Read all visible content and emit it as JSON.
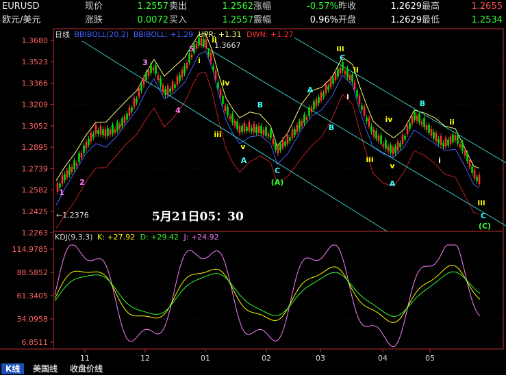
{
  "quote": {
    "symbol": "EURUSD",
    "name": "欧元/美元",
    "row1": [
      {
        "label": "现价",
        "value": "1.2557",
        "color": "#33ff33"
      },
      {
        "label": "卖出",
        "value": "1.2562",
        "color": "#33ff33"
      },
      {
        "label": "涨幅",
        "value": "-0.57%",
        "color": "#33ff33"
      },
      {
        "label": "昨收",
        "value": "1.2629",
        "color": "#ffffff"
      },
      {
        "label": "最高",
        "value": "1.2655",
        "color": "#ff5050"
      }
    ],
    "row2": [
      {
        "label": "涨跌",
        "value": "0.0072",
        "color": "#33ff33"
      },
      {
        "label": "买入",
        "value": "1.2557",
        "color": "#33ff33"
      },
      {
        "label": "震幅",
        "value": "0.96%",
        "color": "#ffffff"
      },
      {
        "label": "开盘",
        "value": "1.2629",
        "color": "#ffffff"
      },
      {
        "label": "最低",
        "value": "1.2534",
        "color": "#33ff33"
      }
    ]
  },
  "main_chart": {
    "period": "日线",
    "indicator": "BBIBOLL(20,2)",
    "bbiboll": "BBIBOLL: +1.29",
    "upr": "UPR: +1.31",
    "dwn": "DWN: +1.27",
    "high_label": "1.3667",
    "low_label": "1.2376",
    "timestamp": "5月21日05：30",
    "y_ticks": [
      "1.3680",
      "1.3523",
      "1.3366",
      "1.3209",
      "1.3052",
      "1.2895",
      "1.2739",
      "1.2582",
      "1.2425",
      "1.2263"
    ]
  },
  "kdj_chart": {
    "indicator": "KDJ(9,3,3)",
    "k": "K: +27.92",
    "d": "D: +29.42",
    "j": "J: +24.92",
    "y_ticks": [
      "114.9785",
      "88.5852",
      "61.3405",
      "34.0958",
      "6.8511"
    ]
  },
  "x_ticks": [
    "11",
    "12",
    "01",
    "02",
    "03",
    "04",
    "05"
  ],
  "wave_labels": [
    {
      "t": "1",
      "c": "#ff80ff"
    },
    {
      "t": "2",
      "c": "#ff80ff"
    },
    {
      "t": "3",
      "c": "#ff80ff"
    },
    {
      "t": "4",
      "c": "#ff80ff"
    },
    {
      "t": "5",
      "c": "#ff80ff"
    },
    {
      "t": "i",
      "c": "#ffff00"
    },
    {
      "t": "ii",
      "c": "#ffff00"
    },
    {
      "t": "iii",
      "c": "#ffff00"
    },
    {
      "t": "iv",
      "c": "#ffff00"
    },
    {
      "t": "v",
      "c": "#ffff00"
    },
    {
      "t": "A",
      "c": "#33ffff"
    },
    {
      "t": "B",
      "c": "#33ffff"
    },
    {
      "t": "C",
      "c": "#33ffff"
    },
    {
      "t": "(A)",
      "c": "#33ff33"
    },
    {
      "t": "A",
      "c": "#33ffff"
    },
    {
      "t": "B",
      "c": "#33ffff"
    },
    {
      "t": "iii",
      "c": "#ffff00"
    },
    {
      "t": "C",
      "c": "#33ffff"
    },
    {
      "t": "i",
      "c": "#ffffff"
    },
    {
      "t": "ii",
      "c": "#ffff00"
    },
    {
      "t": "iii",
      "c": "#ffff00"
    },
    {
      "t": "iv",
      "c": "#ffff00"
    },
    {
      "t": "v",
      "c": "#ffff00"
    },
    {
      "t": "A",
      "c": "#33ffff"
    },
    {
      "t": "B",
      "c": "#33ffff"
    },
    {
      "t": "i",
      "c": "#ffffff"
    },
    {
      "t": "ii",
      "c": "#ffff00"
    },
    {
      "t": "iii",
      "c": "#ffff00"
    },
    {
      "t": "C",
      "c": "#33ffff"
    },
    {
      "t": "(C)",
      "c": "#33ff33"
    }
  ],
  "tabs": [
    "K线",
    "美国线",
    "收盘价线"
  ],
  "colors": {
    "up": "#ff3030",
    "down": "#00e000",
    "upr": "#ffff80",
    "mid": "#4060ff",
    "dwn": "#c02020",
    "channel": "#40e0e0",
    "axis": "#c03030",
    "grid": "#801818"
  }
}
